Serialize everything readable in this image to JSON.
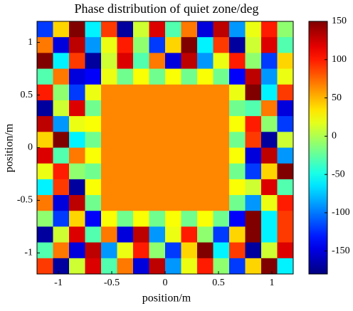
{
  "chart_data": {
    "type": "heatmap",
    "title": "Phase distribution of quiet zone/deg",
    "xlabel": "position/m",
    "ylabel": "position/m",
    "xlim": [
      -1.2,
      1.2
    ],
    "ylim": [
      -1.2,
      1.2
    ],
    "xticks": [
      -1,
      -0.5,
      0,
      0.5,
      1
    ],
    "yticks": [
      -1,
      -0.5,
      0,
      0.5,
      1
    ],
    "clim": [
      -180,
      150
    ],
    "cticks": [
      150,
      100,
      50,
      0,
      -50,
      -100,
      -150
    ],
    "colormap": "jet",
    "x": [
      -1.125,
      -0.975,
      -0.825,
      -0.675,
      -0.525,
      -0.375,
      -0.225,
      -0.075,
      0.075,
      0.225,
      0.375,
      0.525,
      0.675,
      0.825,
      0.975,
      1.125
    ],
    "y": [
      1.125,
      0.975,
      0.825,
      0.675,
      0.525,
      0.375,
      0.225,
      0.075,
      -0.075,
      -0.225,
      -0.375,
      -0.525,
      -0.675,
      -0.825,
      -0.975,
      -1.125
    ],
    "z": [
      [
        -120,
        40,
        150,
        -60,
        90,
        -170,
        10,
        120,
        -30,
        70,
        -150,
        130,
        -90,
        20,
        100,
        -10
      ],
      [
        70,
        -150,
        130,
        -90,
        20,
        100,
        -10,
        -120,
        40,
        150,
        -60,
        90,
        -170,
        10,
        120,
        -30
      ],
      [
        150,
        -60,
        90,
        -170,
        10,
        120,
        -30,
        70,
        -150,
        130,
        -90,
        20,
        100,
        -10,
        -120,
        40
      ],
      [
        -30,
        70,
        -150,
        -140,
        20,
        -20,
        25,
        -20,
        25,
        -20,
        25,
        -20,
        -140,
        130,
        -90,
        20
      ],
      [
        100,
        -10,
        -120,
        20,
        65,
        65,
        65,
        65,
        65,
        65,
        65,
        65,
        20,
        150,
        -60,
        90
      ],
      [
        -170,
        10,
        120,
        -20,
        65,
        65,
        65,
        65,
        65,
        65,
        65,
        65,
        -20,
        -30,
        70,
        -150
      ],
      [
        130,
        -90,
        20,
        25,
        65,
        65,
        65,
        65,
        65,
        65,
        65,
        65,
        25,
        100,
        -10,
        -120
      ],
      [
        40,
        150,
        -60,
        -20,
        65,
        65,
        65,
        65,
        65,
        65,
        65,
        65,
        -20,
        90,
        -170,
        10
      ],
      [
        120,
        -30,
        70,
        25,
        65,
        65,
        65,
        65,
        65,
        65,
        65,
        65,
        25,
        -150,
        130,
        -90
      ],
      [
        20,
        100,
        -10,
        -20,
        65,
        65,
        65,
        65,
        65,
        65,
        65,
        65,
        -20,
        -120,
        40,
        150
      ],
      [
        -60,
        90,
        -170,
        25,
        65,
        65,
        65,
        65,
        65,
        65,
        65,
        65,
        25,
        10,
        120,
        -30
      ],
      [
        70,
        -150,
        130,
        -20,
        65,
        65,
        65,
        65,
        65,
        65,
        65,
        65,
        -20,
        -90,
        20,
        100
      ],
      [
        -10,
        -120,
        40,
        -140,
        25,
        -20,
        25,
        -20,
        25,
        -20,
        25,
        -20,
        -140,
        150,
        -60,
        90
      ],
      [
        -170,
        10,
        120,
        -30,
        70,
        -150,
        130,
        -90,
        20,
        100,
        -10,
        -120,
        40,
        150,
        -60,
        90
      ],
      [
        -30,
        70,
        -150,
        130,
        -90,
        20,
        100,
        -10,
        -120,
        40,
        150,
        -60,
        90,
        -170,
        10,
        120
      ],
      [
        90,
        -170,
        10,
        120,
        -30,
        70,
        -150,
        130,
        -90,
        20,
        100,
        -10,
        -120,
        40,
        150,
        -60
      ]
    ]
  }
}
